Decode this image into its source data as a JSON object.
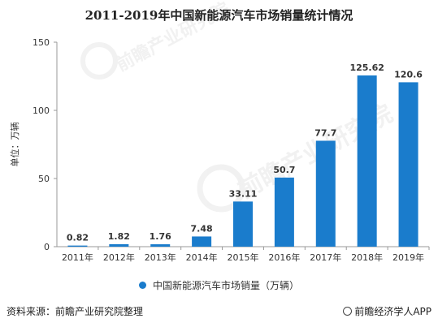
{
  "title": "2011-2019年中国新能源汽车市场销量统计情况",
  "chart_data": {
    "type": "bar",
    "title": "2011-2019年中国新能源汽车市场销量统计情况",
    "categories": [
      "2011年",
      "2012年",
      "2013年",
      "2014年",
      "2015年",
      "2016年",
      "2017年",
      "2018年",
      "2019年"
    ],
    "series": [
      {
        "name": "中国新能源汽车市场销量（万辆）",
        "values": [
          0.82,
          1.82,
          1.76,
          7.48,
          33.11,
          50.7,
          77.7,
          125.62,
          120.6
        ]
      }
    ],
    "data_labels": [
      "0.82",
      "1.82",
      "1.76",
      "7.48",
      "33.11",
      "50.7",
      "77.7",
      "125.62",
      "120.6"
    ],
    "ylabel": "单位：万辆",
    "ylim": [
      0,
      150
    ],
    "yticks": [
      0,
      50,
      100,
      150
    ],
    "grid": false,
    "legend_position": "bottom",
    "colors": {
      "bar": "#1a7ccc",
      "axis": "#999999"
    }
  },
  "legend": {
    "label": "中国新能源汽车市场销量（万辆）",
    "color": "#1a7ccc"
  },
  "footer": {
    "source": "资料来源：前瞻产业研究院整理",
    "brand": "前瞻经济学人APP",
    "brand_icon": "qianzhan-logo-icon"
  },
  "watermark_text": [
    "前瞻产业研究院",
    "前瞻产业研究院"
  ]
}
